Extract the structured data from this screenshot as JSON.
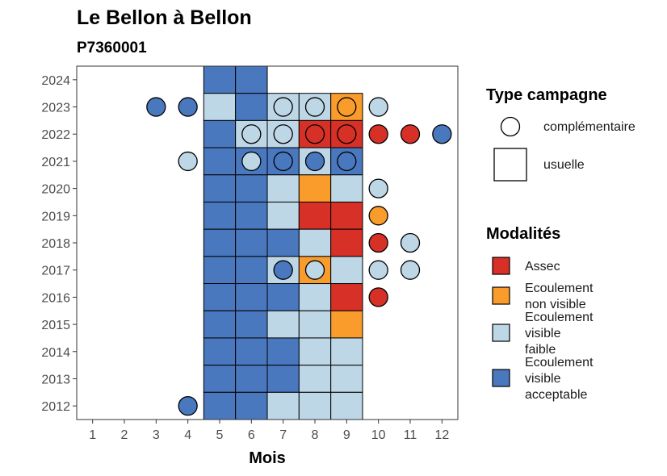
{
  "chart_data": {
    "type": "heatmap",
    "title": "Le Bellon à Bellon",
    "subtitle": "P7360001",
    "xlabel": "Mois",
    "ylabel": "",
    "x_ticks": [
      1,
      2,
      3,
      4,
      5,
      6,
      7,
      8,
      9,
      10,
      11,
      12
    ],
    "y_ticks": [
      2012,
      2013,
      2014,
      2015,
      2016,
      2017,
      2018,
      2019,
      2020,
      2021,
      2022,
      2023,
      2024
    ],
    "xlim": [
      0.5,
      12.5
    ],
    "ylim": [
      2011.5,
      2024.5
    ],
    "grid": false,
    "legend_placement": "right",
    "colors": {
      "Assec": "#d73027",
      "Ecoulement non visible": "#fa9c2c",
      "Ecoulement visible faible": "#bdd7e7",
      "Ecoulement visible acceptable": "#4a78bf"
    },
    "legend_shape": {
      "title": "Type campagne",
      "entries": [
        {
          "shape": "circle",
          "label": "complémentaire"
        },
        {
          "shape": "square",
          "label": "usuelle"
        }
      ]
    },
    "legend_color": {
      "title": "Modalités",
      "entries": [
        {
          "key": "Assec",
          "lines": [
            "Assec"
          ]
        },
        {
          "key": "Ecoulement non visible",
          "lines": [
            "Ecoulement",
            "non visible"
          ]
        },
        {
          "key": "Ecoulement visible faible",
          "lines": [
            "Ecoulement",
            "visible",
            "faible"
          ]
        },
        {
          "key": "Ecoulement visible acceptable",
          "lines": [
            "Ecoulement",
            "visible",
            "acceptable"
          ]
        }
      ]
    },
    "usuelle": [
      {
        "x": 5,
        "y": 2024,
        "v": "Ecoulement visible acceptable"
      },
      {
        "x": 6,
        "y": 2024,
        "v": "Ecoulement visible acceptable"
      },
      {
        "x": 5,
        "y": 2023,
        "v": "Ecoulement visible faible"
      },
      {
        "x": 6,
        "y": 2023,
        "v": "Ecoulement visible acceptable"
      },
      {
        "x": 7,
        "y": 2023,
        "v": "Ecoulement visible faible"
      },
      {
        "x": 8,
        "y": 2023,
        "v": "Ecoulement visible faible"
      },
      {
        "x": 9,
        "y": 2023,
        "v": "Ecoulement non visible"
      },
      {
        "x": 5,
        "y": 2022,
        "v": "Ecoulement visible acceptable"
      },
      {
        "x": 6,
        "y": 2022,
        "v": "Ecoulement visible faible"
      },
      {
        "x": 7,
        "y": 2022,
        "v": "Ecoulement visible faible"
      },
      {
        "x": 8,
        "y": 2022,
        "v": "Assec"
      },
      {
        "x": 9,
        "y": 2022,
        "v": "Assec"
      },
      {
        "x": 5,
        "y": 2021,
        "v": "Ecoulement visible acceptable"
      },
      {
        "x": 6,
        "y": 2021,
        "v": "Ecoulement visible acceptable"
      },
      {
        "x": 7,
        "y": 2021,
        "v": "Ecoulement visible acceptable"
      },
      {
        "x": 8,
        "y": 2021,
        "v": "Ecoulement visible faible"
      },
      {
        "x": 9,
        "y": 2021,
        "v": "Ecoulement visible acceptable"
      },
      {
        "x": 5,
        "y": 2020,
        "v": "Ecoulement visible acceptable"
      },
      {
        "x": 6,
        "y": 2020,
        "v": "Ecoulement visible acceptable"
      },
      {
        "x": 7,
        "y": 2020,
        "v": "Ecoulement visible faible"
      },
      {
        "x": 8,
        "y": 2020,
        "v": "Ecoulement non visible"
      },
      {
        "x": 9,
        "y": 2020,
        "v": "Ecoulement visible faible"
      },
      {
        "x": 5,
        "y": 2019,
        "v": "Ecoulement visible acceptable"
      },
      {
        "x": 6,
        "y": 2019,
        "v": "Ecoulement visible acceptable"
      },
      {
        "x": 7,
        "y": 2019,
        "v": "Ecoulement visible faible"
      },
      {
        "x": 8,
        "y": 2019,
        "v": "Assec"
      },
      {
        "x": 9,
        "y": 2019,
        "v": "Assec"
      },
      {
        "x": 5,
        "y": 2018,
        "v": "Ecoulement visible acceptable"
      },
      {
        "x": 6,
        "y": 2018,
        "v": "Ecoulement visible acceptable"
      },
      {
        "x": 7,
        "y": 2018,
        "v": "Ecoulement visible acceptable"
      },
      {
        "x": 8,
        "y": 2018,
        "v": "Ecoulement visible faible"
      },
      {
        "x": 9,
        "y": 2018,
        "v": "Assec"
      },
      {
        "x": 5,
        "y": 2017,
        "v": "Ecoulement visible acceptable"
      },
      {
        "x": 6,
        "y": 2017,
        "v": "Ecoulement visible acceptable"
      },
      {
        "x": 7,
        "y": 2017,
        "v": "Ecoulement visible faible"
      },
      {
        "x": 8,
        "y": 2017,
        "v": "Ecoulement non visible"
      },
      {
        "x": 9,
        "y": 2017,
        "v": "Ecoulement visible faible"
      },
      {
        "x": 5,
        "y": 2016,
        "v": "Ecoulement visible acceptable"
      },
      {
        "x": 6,
        "y": 2016,
        "v": "Ecoulement visible acceptable"
      },
      {
        "x": 7,
        "y": 2016,
        "v": "Ecoulement visible acceptable"
      },
      {
        "x": 8,
        "y": 2016,
        "v": "Ecoulement visible faible"
      },
      {
        "x": 9,
        "y": 2016,
        "v": "Assec"
      },
      {
        "x": 5,
        "y": 2015,
        "v": "Ecoulement visible acceptable"
      },
      {
        "x": 6,
        "y": 2015,
        "v": "Ecoulement visible acceptable"
      },
      {
        "x": 7,
        "y": 2015,
        "v": "Ecoulement visible faible"
      },
      {
        "x": 8,
        "y": 2015,
        "v": "Ecoulement visible faible"
      },
      {
        "x": 9,
        "y": 2015,
        "v": "Ecoulement non visible"
      },
      {
        "x": 5,
        "y": 2014,
        "v": "Ecoulement visible acceptable"
      },
      {
        "x": 6,
        "y": 2014,
        "v": "Ecoulement visible acceptable"
      },
      {
        "x": 7,
        "y": 2014,
        "v": "Ecoulement visible acceptable"
      },
      {
        "x": 8,
        "y": 2014,
        "v": "Ecoulement visible faible"
      },
      {
        "x": 9,
        "y": 2014,
        "v": "Ecoulement visible faible"
      },
      {
        "x": 5,
        "y": 2013,
        "v": "Ecoulement visible acceptable"
      },
      {
        "x": 6,
        "y": 2013,
        "v": "Ecoulement visible acceptable"
      },
      {
        "x": 7,
        "y": 2013,
        "v": "Ecoulement visible acceptable"
      },
      {
        "x": 8,
        "y": 2013,
        "v": "Ecoulement visible faible"
      },
      {
        "x": 9,
        "y": 2013,
        "v": "Ecoulement visible faible"
      },
      {
        "x": 5,
        "y": 2012,
        "v": "Ecoulement visible acceptable"
      },
      {
        "x": 6,
        "y": 2012,
        "v": "Ecoulement visible acceptable"
      },
      {
        "x": 7,
        "y": 2012,
        "v": "Ecoulement visible faible"
      },
      {
        "x": 8,
        "y": 2012,
        "v": "Ecoulement visible faible"
      },
      {
        "x": 9,
        "y": 2012,
        "v": "Ecoulement visible faible"
      }
    ],
    "complementaire": [
      {
        "x": 3,
        "y": 2023,
        "v": "Ecoulement visible acceptable"
      },
      {
        "x": 4,
        "y": 2023,
        "v": "Ecoulement visible acceptable"
      },
      {
        "x": 7,
        "y": 2023,
        "v": "Ecoulement visible faible"
      },
      {
        "x": 8,
        "y": 2023,
        "v": "Ecoulement visible faible"
      },
      {
        "x": 9,
        "y": 2023,
        "v": "Ecoulement non visible"
      },
      {
        "x": 10,
        "y": 2023,
        "v": "Ecoulement visible faible"
      },
      {
        "x": 6,
        "y": 2022,
        "v": "Ecoulement visible faible"
      },
      {
        "x": 7,
        "y": 2022,
        "v": "Ecoulement visible faible"
      },
      {
        "x": 8,
        "y": 2022,
        "v": "Assec"
      },
      {
        "x": 9,
        "y": 2022,
        "v": "Assec"
      },
      {
        "x": 10,
        "y": 2022,
        "v": "Assec"
      },
      {
        "x": 11,
        "y": 2022,
        "v": "Assec"
      },
      {
        "x": 12,
        "y": 2022,
        "v": "Ecoulement visible acceptable"
      },
      {
        "x": 4,
        "y": 2021,
        "v": "Ecoulement visible faible"
      },
      {
        "x": 6,
        "y": 2021,
        "v": "Ecoulement visible faible"
      },
      {
        "x": 7,
        "y": 2021,
        "v": "Ecoulement visible acceptable"
      },
      {
        "x": 8,
        "y": 2021,
        "v": "Ecoulement visible acceptable"
      },
      {
        "x": 9,
        "y": 2021,
        "v": "Ecoulement visible acceptable"
      },
      {
        "x": 10,
        "y": 2020,
        "v": "Ecoulement visible faible"
      },
      {
        "x": 10,
        "y": 2019,
        "v": "Ecoulement non visible"
      },
      {
        "x": 10,
        "y": 2018,
        "v": "Assec"
      },
      {
        "x": 11,
        "y": 2018,
        "v": "Ecoulement visible faible"
      },
      {
        "x": 7,
        "y": 2017,
        "v": "Ecoulement visible acceptable"
      },
      {
        "x": 8,
        "y": 2017,
        "v": "Ecoulement visible faible"
      },
      {
        "x": 10,
        "y": 2017,
        "v": "Ecoulement visible faible"
      },
      {
        "x": 11,
        "y": 2017,
        "v": "Ecoulement visible faible"
      },
      {
        "x": 10,
        "y": 2016,
        "v": "Assec"
      },
      {
        "x": 4,
        "y": 2012,
        "v": "Ecoulement visible acceptable"
      }
    ]
  }
}
